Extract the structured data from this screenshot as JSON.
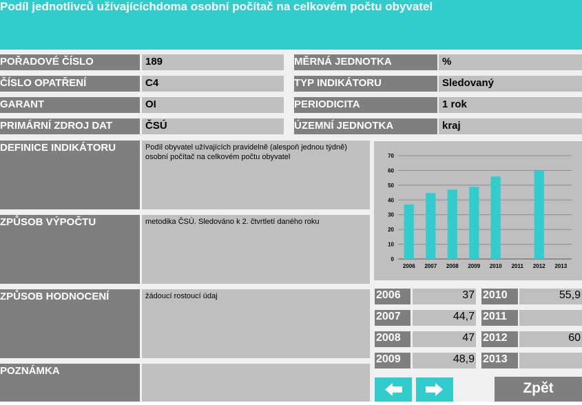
{
  "title": "Podíl jednotlivců užívajícíchdoma osobní počítač na celkovém počtu obyvatel",
  "fields": {
    "poradove_cislo": {
      "label": "POŘADOVÉ ČÍSLO",
      "value": "189"
    },
    "cislo_opatreni": {
      "label": "ČÍSLO OPATŘENÍ",
      "value": "C4"
    },
    "garant": {
      "label": "GARANT",
      "value": "OI"
    },
    "primarni_zdroj": {
      "label": "PRIMÁRNÍ ZDROJ DAT",
      "value": "ČSÚ"
    },
    "merna_jednotka": {
      "label": "MĚRNÁ JEDNOTKA",
      "value": "%"
    },
    "typ_indikatoru": {
      "label": "TYP INDIKÁTORU",
      "value": "Sledovaný"
    },
    "periodicita": {
      "label": "PERIODICITA",
      "value": "1 rok"
    },
    "uzemni_jednotka": {
      "label": "ÚZEMNÍ JEDNOTKA",
      "value": "kraj"
    }
  },
  "definice": {
    "label": "DEFINICE INDIKÁTORU",
    "text": "Podíl obyvatel užívajících pravidelně (alespoň jednou týdně) osobní počítač na celkovém počtu obyvatel"
  },
  "zpusob_vypoctu": {
    "label": "ZPŮSOB VÝPOČTU",
    "text": "metodika ČSÚ. Sledováno k 2. čtvrtletí daného roku"
  },
  "zpusob_hodnoceni": {
    "label": "ZPŮSOB HODNOCENÍ",
    "text": "žádoucí rostoucí údaj"
  },
  "poznamka": {
    "label": "POZNÁMKA",
    "text": ""
  },
  "chart_data": {
    "type": "bar",
    "categories": [
      "2006",
      "2007",
      "2008",
      "2009",
      "2010",
      "2011",
      "2012",
      "2013"
    ],
    "values": [
      37,
      44.7,
      47,
      48.9,
      55.9,
      null,
      60,
      null
    ],
    "ylim": [
      0,
      70
    ],
    "yticks": [
      0,
      10,
      20,
      30,
      40,
      50,
      60,
      70
    ],
    "grid": true,
    "bar_color": "#33cccc"
  },
  "year_table": [
    {
      "year": "2006",
      "value": "37"
    },
    {
      "year": "2007",
      "value": "44,7"
    },
    {
      "year": "2008",
      "value": "47"
    },
    {
      "year": "2009",
      "value": "48,9"
    },
    {
      "year": "2010",
      "value": "55,9"
    },
    {
      "year": "2011",
      "value": ""
    },
    {
      "year": "2012",
      "value": "60"
    },
    {
      "year": "2013",
      "value": ""
    }
  ],
  "buttons": {
    "prev_icon": "arrow-left-icon",
    "next_icon": "arrow-right-icon",
    "back_label": "Zpět"
  },
  "colors": {
    "accent": "#33cccc",
    "label_bg": "#7f7f7f",
    "value_bg": "#bfbfbf",
    "panel_bg": "#f0f0f0"
  }
}
